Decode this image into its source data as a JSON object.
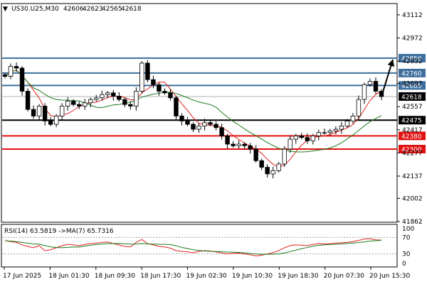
{
  "chart_data": {
    "type": "candlestick",
    "symbol": "US30.U25,M30",
    "ohlc_header": {
      "open": "42606",
      "high": "42623",
      "low": "42565",
      "close": "42618"
    },
    "price_axis": {
      "range": [
        41862,
        43176
      ],
      "ticks": [
        "43112",
        "42972",
        "42832",
        "42697",
        "42557",
        "42417",
        "42277",
        "42137",
        "42002",
        "41862"
      ]
    },
    "time_axis": {
      "ticks": [
        "17 Jun 2025",
        "18 Jun 01:30",
        "18 Jun 09:30",
        "18 Jun 17:30",
        "19 Jun 02:30",
        "19 Jun 10:30",
        "19 Jun 18:30",
        "20 Jun 07:30",
        "20 Jun 15:30"
      ]
    },
    "levels": [
      {
        "value": 42850,
        "label": "42850",
        "color": "#3d6e9e",
        "label_bg": "#3d6e9e"
      },
      {
        "value": 42760,
        "label": "42760",
        "color": "#3d6e9e",
        "label_bg": "#3d6e9e"
      },
      {
        "value": 42685,
        "label": "42685",
        "color": "#3d6e9e",
        "label_bg": "#3d6e9e"
      },
      {
        "value": 42475,
        "label": "42475",
        "color": "#000000",
        "label_bg": "#000000"
      },
      {
        "value": 42380,
        "label": "42380",
        "color": "#e01010",
        "label_bg": "#e01010"
      },
      {
        "value": 42300,
        "label": "42300",
        "color": "#e01010",
        "label_bg": "#e01010"
      }
    ],
    "current_price": {
      "value": 42618,
      "label": "42618",
      "label_bg": "#000000"
    },
    "closes": [
      42740,
      42800,
      42790,
      42650,
      42540,
      42500,
      42560,
      42470,
      42450,
      42500,
      42560,
      42590,
      42570,
      42560,
      42580,
      42600,
      42610,
      42630,
      42640,
      42620,
      42600,
      42570,
      42560,
      42650,
      42820,
      42720,
      42690,
      42650,
      42640,
      42610,
      42500,
      42470,
      42450,
      42420,
      42440,
      42460,
      42450,
      42430,
      42380,
      42330,
      42320,
      42330,
      42320,
      42300,
      42230,
      42190,
      42150,
      42170,
      42210,
      42300,
      42360,
      42380,
      42370,
      42350,
      42380,
      42400,
      42400,
      42410,
      42420,
      42440,
      42470,
      42500,
      42600,
      42690,
      42710,
      42650,
      42618
    ],
    "ma_fast_color": "#e02020",
    "ma_slow_color": "#1a7a1a",
    "forecast_arrow": {
      "from": 42618,
      "to": 42850
    },
    "rsi": {
      "label": "RSI(14) 63.5819 ->MA(7) 65.7316",
      "range": [
        0,
        100
      ],
      "levels": [
        70,
        30
      ],
      "tick_labels": [
        "100",
        "70",
        "30",
        "0"
      ],
      "line_color": "#e02020",
      "ma_color": "#1a7a1a",
      "values": [
        62,
        60,
        58,
        52,
        48,
        45,
        50,
        38,
        40,
        45,
        50,
        53,
        52,
        50,
        53,
        55,
        56,
        58,
        59,
        55,
        52,
        48,
        47,
        58,
        65,
        55,
        52,
        48,
        47,
        44,
        38,
        36,
        35,
        33,
        36,
        38,
        37,
        35,
        32,
        30,
        31,
        32,
        30,
        28,
        25,
        27,
        30,
        33,
        38,
        45,
        50,
        52,
        51,
        50,
        53,
        55,
        54,
        55,
        56,
        57,
        58,
        60,
        63,
        66,
        67,
        64,
        63.58
      ]
    }
  }
}
